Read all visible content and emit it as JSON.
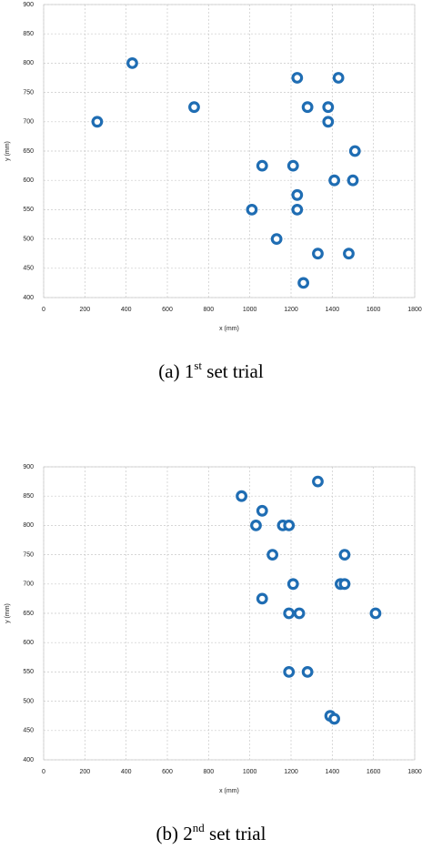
{
  "chart_data": [
    {
      "type": "scatter",
      "xlabel": "x (mm)",
      "ylabel": "y (mm)",
      "color": "#1f6db3",
      "grid": true,
      "caption": {
        "prefix": "(a) 1",
        "sup": "st",
        "suffix": " set trial"
      },
      "xlim": [
        0,
        1800
      ],
      "xticks": [
        0,
        200,
        400,
        600,
        800,
        1000,
        1200,
        1400,
        1600,
        1800
      ],
      "ylim": [
        400,
        900
      ],
      "yticks": [
        400,
        450,
        500,
        550,
        600,
        650,
        700,
        750,
        800,
        850,
        900
      ],
      "x": [
        430,
        260,
        730,
        1230,
        1430,
        1280,
        1380,
        1380,
        1510,
        1060,
        1210,
        1410,
        1500,
        1230,
        1010,
        1230,
        1130,
        1330,
        1480,
        1260
      ],
      "values": [
        800,
        700,
        725,
        775,
        775,
        725,
        725,
        700,
        650,
        625,
        625,
        600,
        600,
        575,
        550,
        550,
        500,
        475,
        475,
        425
      ]
    },
    {
      "type": "scatter",
      "xlabel": "x (mm)",
      "ylabel": "y (mm)",
      "color": "#1f6db3",
      "grid": true,
      "caption": {
        "prefix": "(b) 2",
        "sup": "nd",
        "suffix": " set trial"
      },
      "xlim": [
        0,
        1800
      ],
      "xticks": [
        0,
        200,
        400,
        600,
        800,
        1000,
        1200,
        1400,
        1600,
        1800
      ],
      "ylim": [
        400,
        900
      ],
      "yticks": [
        400,
        450,
        500,
        550,
        600,
        650,
        700,
        750,
        800,
        850,
        900
      ],
      "x": [
        1330,
        960,
        1060,
        1030,
        1160,
        1190,
        1110,
        1460,
        1210,
        1440,
        1460,
        1060,
        1190,
        1240,
        1610,
        1190,
        1280,
        1390,
        1410
      ],
      "values": [
        875,
        850,
        825,
        800,
        800,
        800,
        750,
        750,
        700,
        700,
        700,
        675,
        650,
        650,
        650,
        550,
        550,
        475,
        470
      ]
    }
  ]
}
